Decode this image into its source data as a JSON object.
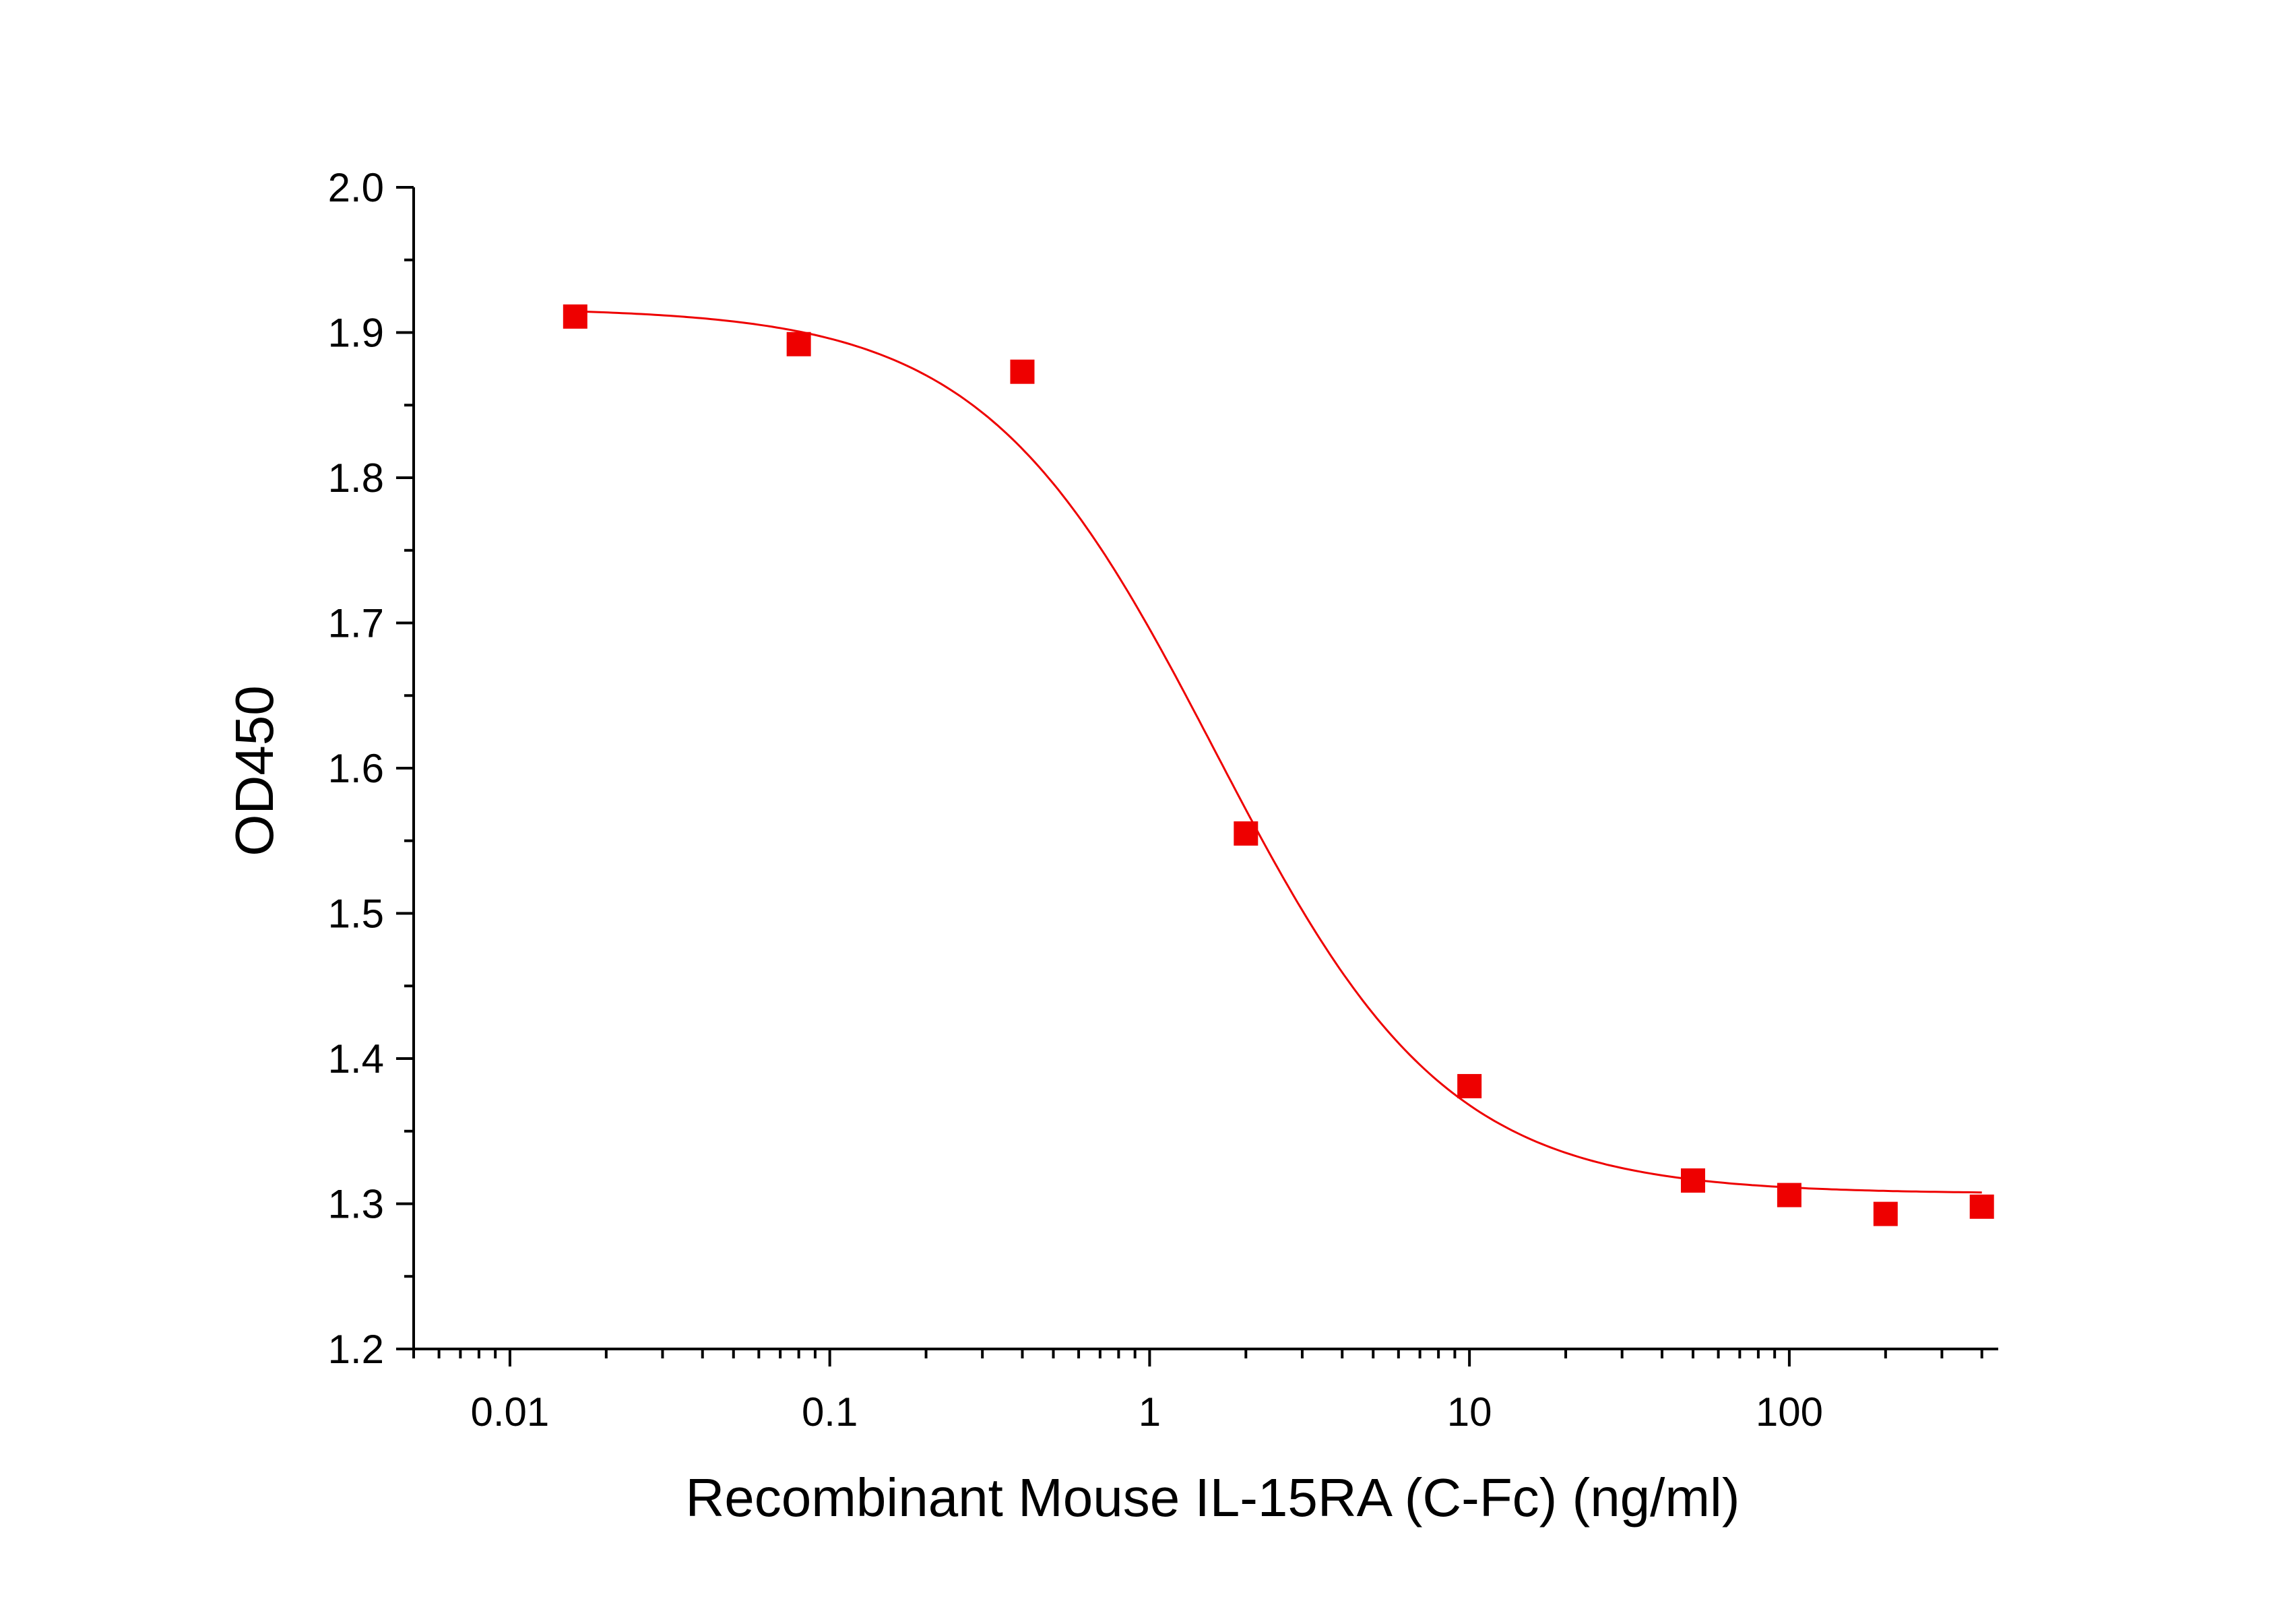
{
  "chart_data": {
    "type": "scatter",
    "title": "",
    "xlabel": "Recombinant Mouse IL-15RA (C-Fc) (ng/ml)",
    "ylabel": "OD450",
    "xscale": "log",
    "xlim": [
      0.005,
      450
    ],
    "ylim": [
      1.2,
      2.0
    ],
    "x_ticks": [
      "0.01",
      "0.1",
      "1",
      "10",
      "100"
    ],
    "y_ticks": [
      "1.2",
      "1.3",
      "1.4",
      "1.5",
      "1.6",
      "1.7",
      "1.8",
      "1.9",
      "2.0"
    ],
    "grid": false,
    "legend": "none",
    "marker": "square",
    "color": "#ee0000",
    "series": [
      {
        "x": [
          0.016,
          0.08,
          0.4,
          2,
          10,
          50,
          100,
          200,
          400
        ],
        "y": [
          1.911,
          1.892,
          1.873,
          1.555,
          1.381,
          1.316,
          1.306,
          1.293,
          1.298
        ]
      }
    ],
    "fit": {
      "type": "four-parameter logistic",
      "top": 1.917,
      "bottom": 1.307,
      "ec50": 1.6,
      "hill": 1.2
    }
  }
}
